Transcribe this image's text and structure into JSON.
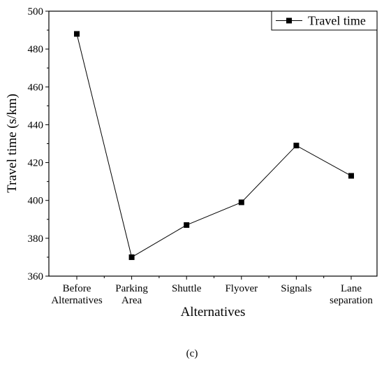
{
  "chart_data": {
    "type": "line",
    "title": "",
    "xlabel": "Alternatives",
    "ylabel": "Travel time (s/km)",
    "categories": [
      [
        "Before",
        "Alternatives"
      ],
      [
        "Parking",
        "Area"
      ],
      [
        "Shuttle"
      ],
      [
        "Flyover"
      ],
      [
        "Signals"
      ],
      [
        "Lane",
        "separation"
      ]
    ],
    "series": [
      {
        "name": "Travel time",
        "values": [
          488,
          370,
          387,
          399,
          429,
          413
        ],
        "marker": "square",
        "color": "#000000"
      }
    ],
    "ylim": [
      360,
      500
    ],
    "yticks": [
      360,
      380,
      400,
      420,
      440,
      460,
      480,
      500
    ],
    "legend_position": "top-right",
    "grid": false
  },
  "caption": "(c)"
}
